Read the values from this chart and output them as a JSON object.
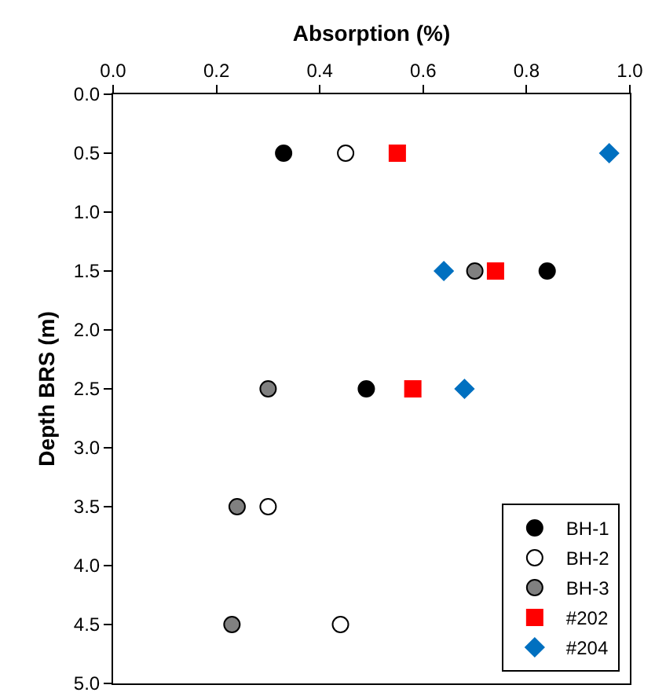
{
  "chart_data": {
    "type": "scatter",
    "xlabel": "Absorption (%)",
    "ylabel": "Depth BRS (m)",
    "xlim": [
      0,
      1
    ],
    "xticks": [
      {
        "value": 0,
        "label": "0.0"
      },
      0.2,
      0.4,
      0.6,
      0.8,
      {
        "value": 1,
        "label": "1.0"
      }
    ],
    "ylim": [
      5,
      0
    ],
    "yticks": [
      {
        "value": 0,
        "label": "0.0"
      },
      0.5,
      {
        "value": 1,
        "label": "1.0"
      },
      1.5,
      {
        "value": 2,
        "label": "2.0"
      },
      2.5,
      {
        "value": 3,
        "label": "3.0"
      },
      3.5,
      {
        "value": 4,
        "label": "4.0"
      },
      4.5,
      {
        "value": 5,
        "label": "5.0"
      }
    ],
    "grid": false,
    "legend": "bottom right",
    "series": [
      {
        "name": "BH-1",
        "color": "#000000",
        "marker": "circle",
        "x": [
          0.33,
          0.84,
          0.49
        ],
        "values": [
          0.5,
          1.5,
          2.5
        ]
      },
      {
        "name": "BH-2",
        "color": "#ffffff",
        "marker": "circle",
        "x": [
          0.45,
          0.3,
          0.44
        ],
        "values": [
          0.5,
          3.5,
          4.5
        ]
      },
      {
        "name": "BH-3",
        "color": "#808080",
        "marker": "circle",
        "x": [
          0.7,
          0.3,
          0.24,
          0.23
        ],
        "values": [
          1.5,
          2.5,
          3.5,
          4.5
        ]
      },
      {
        "name": "#202",
        "color": "#ff0000",
        "marker": "square",
        "x": [
          0.55,
          0.74,
          0.58
        ],
        "values": [
          0.5,
          1.5,
          2.5
        ]
      },
      {
        "name": "#204",
        "color": "#0070c0",
        "marker": "diamond",
        "x": [
          0.96,
          0.64,
          0.68
        ],
        "values": [
          0.5,
          1.5,
          2.5
        ]
      }
    ]
  }
}
